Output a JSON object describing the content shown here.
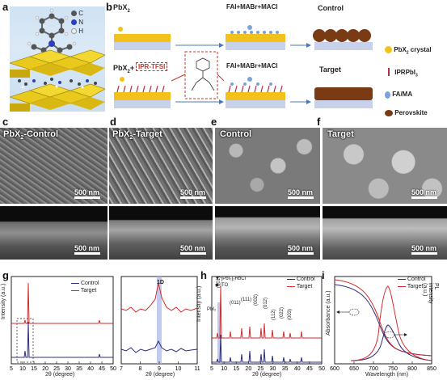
{
  "panels": {
    "a": "a",
    "b": "b",
    "c": "c",
    "d": "d",
    "e": "e",
    "f": "f",
    "g": "g",
    "h": "h",
    "i": "i"
  },
  "panel_a": {
    "legend": [
      {
        "symbol": "C",
        "color": "#555555"
      },
      {
        "symbol": "N",
        "color": "#2a3fb8"
      },
      {
        "symbol": "H",
        "color": "#e8e8e8"
      }
    ]
  },
  "panel_b": {
    "top_left_label": "PbX",
    "top_left_sub": "2",
    "mid_label": "FAI+MABr+MACl",
    "mid_label2": "FAI+MABr+MACl",
    "control_label": "Control",
    "target_label": "Target",
    "bottom_left_prefix": "PbX",
    "bottom_left_sub": "2",
    "bottom_left_plus": "+",
    "ipr_label": "IPR-TFSI",
    "legend": [
      {
        "text": "PbX",
        "sub": "2",
        "after": " crystal",
        "color": "#f2c21a"
      },
      {
        "text": "IPRPbI",
        "sub": "3",
        "after": "",
        "color": "#b0324a"
      },
      {
        "text": "FA/MA",
        "sub": "",
        "after": "",
        "color": "#7aa3d9"
      },
      {
        "text": "Perovskite",
        "sub": "",
        "after": "",
        "color": "#7a3a14"
      }
    ]
  },
  "sem": {
    "c_title": "PbX",
    "c_title_sub": "2",
    "c_title_after": "-Control",
    "d_title": "PbX",
    "d_title_sub": "2",
    "d_title_after": "-Target",
    "e_title": "Control",
    "f_title": "Target",
    "scale_500": "500 nm"
  },
  "colors": {
    "control": "#2b2f7a",
    "target": "#d42b2b",
    "band": "#a9b3ea"
  },
  "chart_data": [
    {
      "panel": "g-left",
      "type": "line",
      "xlabel": "2θ (degree)",
      "ylabel": "Intensity (a.u.)",
      "xlim": [
        5,
        50
      ],
      "xticks": [
        5,
        10,
        15,
        20,
        25,
        30,
        35,
        40,
        45,
        50
      ],
      "series": [
        {
          "name": "Control",
          "peaks": [
            [
              9.0,
              0.6
            ],
            [
              12.7,
              1.0
            ],
            [
              38.6,
              0.15
            ]
          ]
        },
        {
          "name": "Target",
          "peaks": [
            [
              9.0,
              0.15
            ],
            [
              12.7,
              1.0
            ],
            [
              38.6,
              0.08
            ]
          ]
        }
      ],
      "legend": "top-right"
    },
    {
      "panel": "g-right",
      "type": "line",
      "xlabel": "2θ (degree)",
      "xlim": [
        7,
        11
      ],
      "xticks": [
        7,
        8,
        9,
        10,
        11
      ],
      "annotation": "1D",
      "band_x": 9.0,
      "series": [
        {
          "name": "Target",
          "peak_x": 9.0
        },
        {
          "name": "Control",
          "peak_x": 9.0
        }
      ]
    },
    {
      "panel": "h",
      "type": "line",
      "xlabel": "2θ (degree)",
      "ylabel": "Intensity (a.u.)",
      "xlim": [
        5,
        50
      ],
      "xticks": [
        5,
        10,
        15,
        20,
        25,
        30,
        35,
        40,
        45,
        50
      ],
      "series": [
        {
          "name": "Control"
        },
        {
          "name": "Target"
        }
      ],
      "legend_markers": [
        "▼ [PbI₂]₂RbCl",
        "◆ ITO"
      ],
      "annotations": [
        "PbI₂",
        "(001)",
        "(011)",
        "(111)",
        "(002)",
        "(012)",
        "(112)",
        "(022)",
        "(003)"
      ]
    },
    {
      "panel": "i",
      "type": "line",
      "xlabel": "Wavelength (nm)",
      "ylabel_left": "Absorbance (a.u.)",
      "ylabel_right": "PL intensity (a.u.)",
      "xlim": [
        600,
        850
      ],
      "xticks": [
        600,
        650,
        700,
        750,
        800,
        850
      ],
      "series": [
        {
          "name": "Control"
        },
        {
          "name": "Target"
        }
      ],
      "pl_peak_nm": 752
    }
  ],
  "g": {
    "ylabel": "Intensity (a.u.)",
    "xlabel": "2θ (degree)",
    "legend_control": "Control",
    "legend_target": "Target",
    "ticks": [
      "5",
      "10",
      "15",
      "20",
      "25",
      "30",
      "35",
      "40",
      "45",
      "50"
    ],
    "right_ticks": [
      "7",
      "8",
      "9",
      "10",
      "11"
    ],
    "annot": "1D"
  },
  "h": {
    "ylabel": "Intensity (a.u.)",
    "xlabel": "2θ (degree)",
    "legend_control": "Control",
    "legend_target": "Target",
    "marker1": "▼ [PbI₂]₂RbCl",
    "marker2": "◆ ITO",
    "pbi2": "PbI₂",
    "p001": "(001)",
    "p011": "(011)",
    "p111": "(111)",
    "p002": "(002)",
    "p012": "(012)",
    "p112": "(112)",
    "p022": "(022)",
    "p003": "(003)",
    "ticks": [
      "5",
      "10",
      "15",
      "20",
      "25",
      "30",
      "35",
      "40",
      "45",
      "50"
    ]
  },
  "i": {
    "ylabel_left": "Absorbance (a.u.)",
    "ylabel_right": "PL intensity (a.u.)",
    "xlabel": "Wavelength (nm)",
    "legend_control": "Control",
    "legend_target": "Target",
    "ticks": [
      "600",
      "650",
      "700",
      "750",
      "800",
      "850"
    ]
  }
}
